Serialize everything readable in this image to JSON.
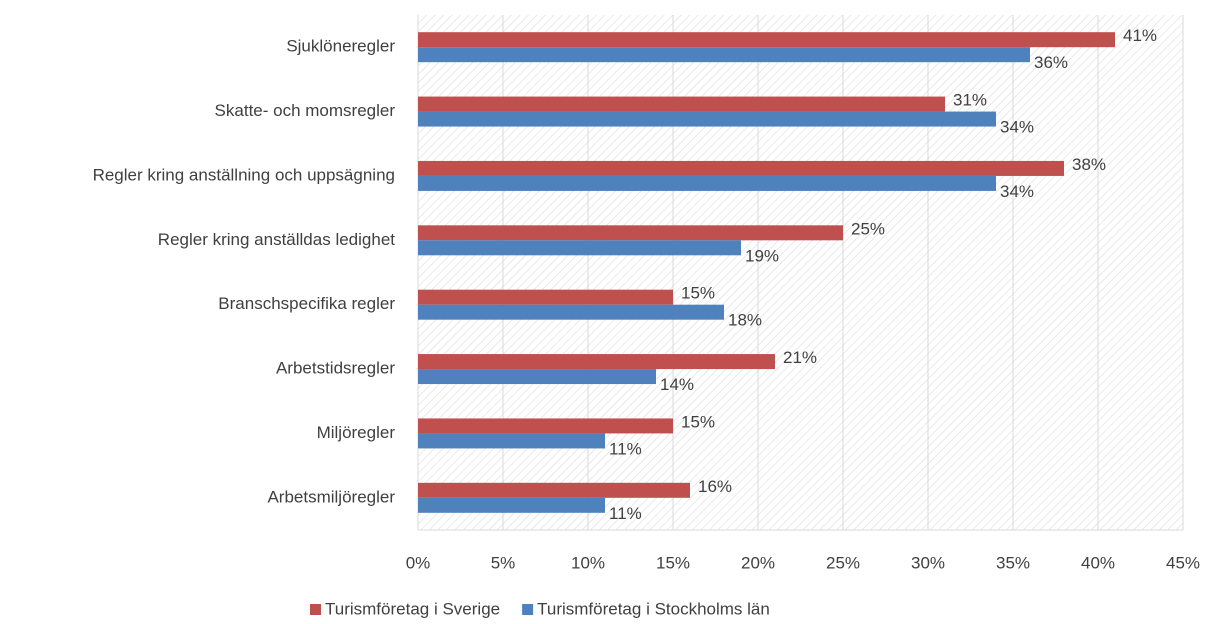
{
  "chart_data": {
    "type": "barh",
    "categories": [
      "Sjuklöneregler",
      "Skatte- och momsregler",
      "Regler kring anställning och uppsägning",
      "Regler kring anställdas ledighet",
      "Branschspecifika regler",
      "Arbetstidsregler",
      "Miljöregler",
      "Arbetsmiljöregler"
    ],
    "series": [
      {
        "name": "Turismföretag i Sverige",
        "color": "#c0504d",
        "values": [
          41,
          31,
          38,
          25,
          15,
          21,
          15,
          16
        ],
        "value_labels": [
          "41%",
          "31%",
          "38%",
          "25%",
          "15%",
          "21%",
          "15%",
          "16%"
        ]
      },
      {
        "name": "Turismföretag i Stockholms län",
        "color": "#4f81bd",
        "values": [
          36,
          34,
          34,
          19,
          18,
          14,
          11,
          11
        ],
        "value_labels": [
          "36%",
          "34%",
          "34%",
          "19%",
          "18%",
          "14%",
          "11%",
          "11%"
        ]
      }
    ],
    "xlim": [
      0,
      45
    ],
    "xticks": [
      {
        "value": 0,
        "label": "0%"
      },
      {
        "value": 5,
        "label": "5%"
      },
      {
        "value": 10,
        "label": "10%"
      },
      {
        "value": 15,
        "label": "15%"
      },
      {
        "value": 20,
        "label": "20%"
      },
      {
        "value": 25,
        "label": "25%"
      },
      {
        "value": 30,
        "label": "30%"
      },
      {
        "value": 35,
        "label": "35%"
      },
      {
        "value": 40,
        "label": "40%"
      },
      {
        "value": 45,
        "label": "45%"
      }
    ],
    "grid": true,
    "legend": "bottom"
  }
}
